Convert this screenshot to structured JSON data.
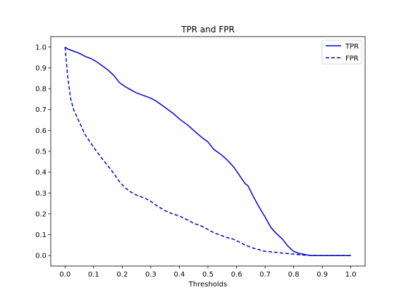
{
  "chart_data": {
    "type": "line",
    "title": "TPR and FPR",
    "xlabel": "Thresholds",
    "ylabel": "",
    "xlim": [
      -0.05,
      1.05
    ],
    "ylim": [
      -0.05,
      1.05
    ],
    "xticks": [
      "0.0",
      "0.1",
      "0.2",
      "0.3",
      "0.4",
      "0.5",
      "0.6",
      "0.7",
      "0.8",
      "0.9",
      "1.0"
    ],
    "yticks": [
      "0.0",
      "0.1",
      "0.2",
      "0.3",
      "0.4",
      "0.5",
      "0.6",
      "0.7",
      "0.8",
      "0.9",
      "1.0"
    ],
    "grid": false,
    "legend_position": "top-right",
    "x": [
      0.0,
      0.01,
      0.02,
      0.03,
      0.05,
      0.07,
      0.09,
      0.11,
      0.13,
      0.15,
      0.17,
      0.19,
      0.21,
      0.23,
      0.25,
      0.28,
      0.3,
      0.32,
      0.35,
      0.38,
      0.4,
      0.43,
      0.45,
      0.48,
      0.5,
      0.52,
      0.55,
      0.57,
      0.59,
      0.61,
      0.63,
      0.64,
      0.66,
      0.68,
      0.7,
      0.72,
      0.74,
      0.76,
      0.78,
      0.8,
      0.82,
      0.84,
      0.86,
      0.9,
      0.95,
      1.0
    ],
    "series": [
      {
        "name": "TPR",
        "color": "#0000cc",
        "style": "solid",
        "values": [
          1.0,
          0.99,
          0.985,
          0.98,
          0.97,
          0.955,
          0.945,
          0.93,
          0.91,
          0.89,
          0.865,
          0.83,
          0.81,
          0.795,
          0.78,
          0.765,
          0.755,
          0.74,
          0.71,
          0.68,
          0.655,
          0.625,
          0.6,
          0.565,
          0.545,
          0.51,
          0.48,
          0.455,
          0.425,
          0.385,
          0.345,
          0.335,
          0.28,
          0.23,
          0.185,
          0.135,
          0.105,
          0.08,
          0.045,
          0.02,
          0.01,
          0.005,
          0.0,
          0.0,
          0.0,
          0.0
        ]
      },
      {
        "name": "FPR",
        "color": "#0000cc",
        "style": "dashed",
        "values": [
          1.0,
          0.85,
          0.75,
          0.7,
          0.64,
          0.58,
          0.54,
          0.5,
          0.465,
          0.43,
          0.395,
          0.355,
          0.325,
          0.305,
          0.29,
          0.275,
          0.26,
          0.24,
          0.215,
          0.198,
          0.19,
          0.17,
          0.155,
          0.14,
          0.125,
          0.11,
          0.095,
          0.085,
          0.078,
          0.065,
          0.05,
          0.045,
          0.035,
          0.028,
          0.02,
          0.018,
          0.015,
          0.012,
          0.01,
          0.007,
          0.004,
          0.002,
          0.001,
          0.0,
          0.0,
          0.0
        ]
      }
    ]
  }
}
